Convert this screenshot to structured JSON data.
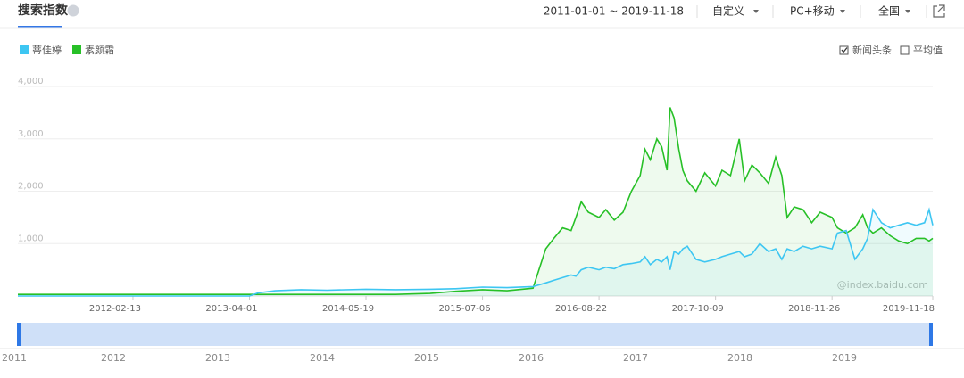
{
  "header": {
    "title": "搜索指数",
    "date_range": "2011-01-01 ~ 2019-11-18",
    "mode": "自定义",
    "device": "PC+移动",
    "region": "全国"
  },
  "options": {
    "news": "新闻头条",
    "average": "平均值",
    "news_checked": true,
    "average_checked": false
  },
  "watermark": "@index.baidu.com",
  "navigator": {
    "years": [
      "2011",
      "2012",
      "2013",
      "2014",
      "2015",
      "2016",
      "2017",
      "2018",
      "2019"
    ]
  },
  "chart_data": {
    "type": "line",
    "x": [
      "2011-01-01",
      "2012-01-01",
      "2013-01-01",
      "2013-04-01",
      "2013-05-01",
      "2013-07-01",
      "2013-10-01",
      "2014-01-01",
      "2014-05-19",
      "2014-09-01",
      "2015-01-01",
      "2015-04-01",
      "2015-07-06",
      "2015-10-01",
      "2016-01-01",
      "2016-02-15",
      "2016-03-15",
      "2016-04-15",
      "2016-05-15",
      "2016-06-01",
      "2016-06-20",
      "2016-07-15",
      "2016-08-22",
      "2016-09-15",
      "2016-10-15",
      "2016-11-15",
      "2016-12-15",
      "2017-01-15",
      "2017-02-01",
      "2017-02-20",
      "2017-03-15",
      "2017-04-01",
      "2017-04-20",
      "2017-05-01",
      "2017-05-15",
      "2017-06-01",
      "2017-06-15",
      "2017-07-01",
      "2017-08-01",
      "2017-09-01",
      "2017-10-09",
      "2017-11-01",
      "2017-12-01",
      "2018-01-01",
      "2018-01-20",
      "2018-02-15",
      "2018-03-15",
      "2018-04-15",
      "2018-05-10",
      "2018-06-01",
      "2018-06-20",
      "2018-07-15",
      "2018-08-15",
      "2018-09-15",
      "2018-10-15",
      "2018-11-26",
      "2018-12-15",
      "2019-01-15",
      "2019-02-15",
      "2019-03-15",
      "2019-04-01",
      "2019-04-20",
      "2019-05-20",
      "2019-06-20",
      "2019-07-20",
      "2019-08-20",
      "2019-09-20",
      "2019-10-20",
      "2019-11-05",
      "2019-11-18"
    ],
    "series": [
      {
        "name": "蒂佳婷",
        "color": "#3dc6f2",
        "values": [
          0,
          0,
          0,
          0,
          60,
          100,
          120,
          110,
          130,
          120,
          130,
          140,
          170,
          160,
          180,
          250,
          300,
          350,
          400,
          380,
          500,
          550,
          500,
          550,
          520,
          600,
          620,
          650,
          750,
          600,
          700,
          650,
          750,
          500,
          850,
          800,
          900,
          950,
          700,
          650,
          700,
          750,
          800,
          850,
          750,
          800,
          1000,
          850,
          900,
          700,
          900,
          850,
          950,
          900,
          950,
          900,
          1200,
          1250,
          700,
          900,
          1100,
          1650,
          1400,
          1300,
          1350,
          1400,
          1350,
          1400,
          1650,
          1350
        ]
      },
      {
        "name": "素颜霜",
        "color": "#27c027",
        "values": [
          30,
          30,
          30,
          30,
          30,
          30,
          30,
          30,
          30,
          30,
          50,
          90,
          120,
          100,
          150,
          900,
          1100,
          1300,
          1250,
          1500,
          1800,
          1600,
          1500,
          1650,
          1450,
          1600,
          2000,
          2300,
          2800,
          2600,
          3000,
          2850,
          2400,
          3600,
          3400,
          2800,
          2400,
          2200,
          2000,
          2350,
          2100,
          2400,
          2300,
          3000,
          2200,
          2500,
          2350,
          2150,
          2650,
          2300,
          1500,
          1700,
          1650,
          1400,
          1600,
          1500,
          1300,
          1200,
          1300,
          1550,
          1300,
          1200,
          1300,
          1150,
          1050,
          1000,
          1100,
          1100,
          1050,
          1100
        ]
      }
    ],
    "xlim": [
      "2011-01-01",
      "2019-11-18"
    ],
    "xticks": [
      "2012-02-13",
      "2013-04-01",
      "2014-05-19",
      "2015-07-06",
      "2016-08-22",
      "2017-10-09",
      "2018-11-26",
      "2019-11-18"
    ],
    "ylim": [
      0,
      4000
    ],
    "yticks": [
      {
        "value": 1000,
        "label": "1,000"
      },
      {
        "value": 2000,
        "label": "2,000"
      },
      {
        "value": 3000,
        "label": "3,000"
      },
      {
        "value": 4000,
        "label": "4,000"
      }
    ],
    "grid": true,
    "legend": "top-left"
  }
}
